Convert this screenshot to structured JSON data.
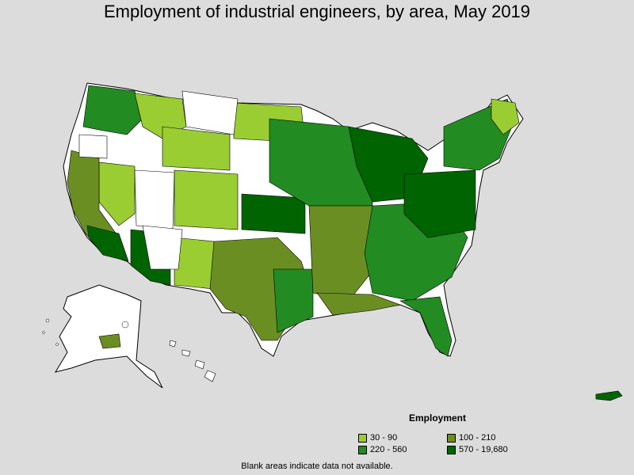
{
  "title": "Employment of industrial engineers, by area, May 2019",
  "legend": {
    "title": "Employment",
    "items": [
      {
        "label": "30 - 90",
        "color": "#9acd32"
      },
      {
        "label": "100 - 210",
        "color": "#6b8e23"
      },
      {
        "label": "220 - 560",
        "color": "#228b22"
      },
      {
        "label": "570 - 19,680",
        "color": "#006400"
      }
    ]
  },
  "footnote": "Blank areas indicate data not available.",
  "colors": {
    "background": "#dcdcdc",
    "no_data": "#ffffff",
    "border": "#000000"
  }
}
